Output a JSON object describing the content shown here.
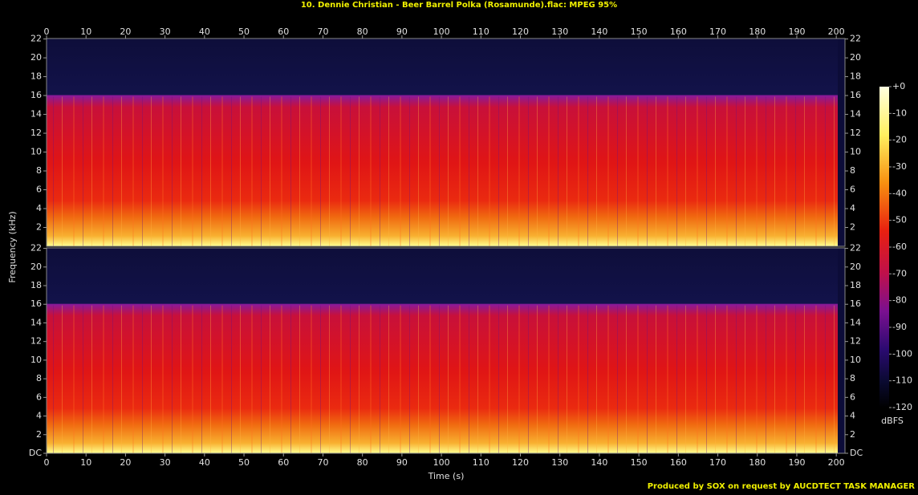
{
  "chart_data": {
    "type": "spectrogram",
    "title": "10. Dennie Christian - Beer Barrel Polka (Rosamunde).flac: MPEG 95%",
    "x_label": "Time (s)",
    "y_label": "Frequency (kHz)",
    "xlim": [
      0,
      202.2
    ],
    "xticks": [
      0,
      10,
      20,
      30,
      40,
      50,
      60,
      70,
      80,
      90,
      100,
      110,
      120,
      130,
      140,
      150,
      160,
      170,
      180,
      190,
      200
    ],
    "panels": [
      {
        "ylim": [
          0,
          22.05
        ],
        "yticks": [
          2,
          4,
          6,
          8,
          10,
          12,
          14,
          16,
          18,
          20,
          22
        ]
      },
      {
        "ylim": [
          0,
          22.05
        ],
        "yticks": [
          {
            "value": 0,
            "label": "DC"
          },
          2,
          4,
          6,
          8,
          10,
          12,
          14,
          16,
          18,
          20,
          22
        ]
      }
    ],
    "colorbar": {
      "label": "dBFS",
      "lim": [
        -120,
        0
      ],
      "ticks": [
        {
          "value": 0,
          "label": "+0"
        },
        -10,
        -20,
        -30,
        -40,
        -50,
        -60,
        -70,
        -80,
        -90,
        -100,
        -110,
        -120
      ]
    }
  },
  "footer": "Produced by SOX on request by AUCDTECT TASK MANAGER"
}
